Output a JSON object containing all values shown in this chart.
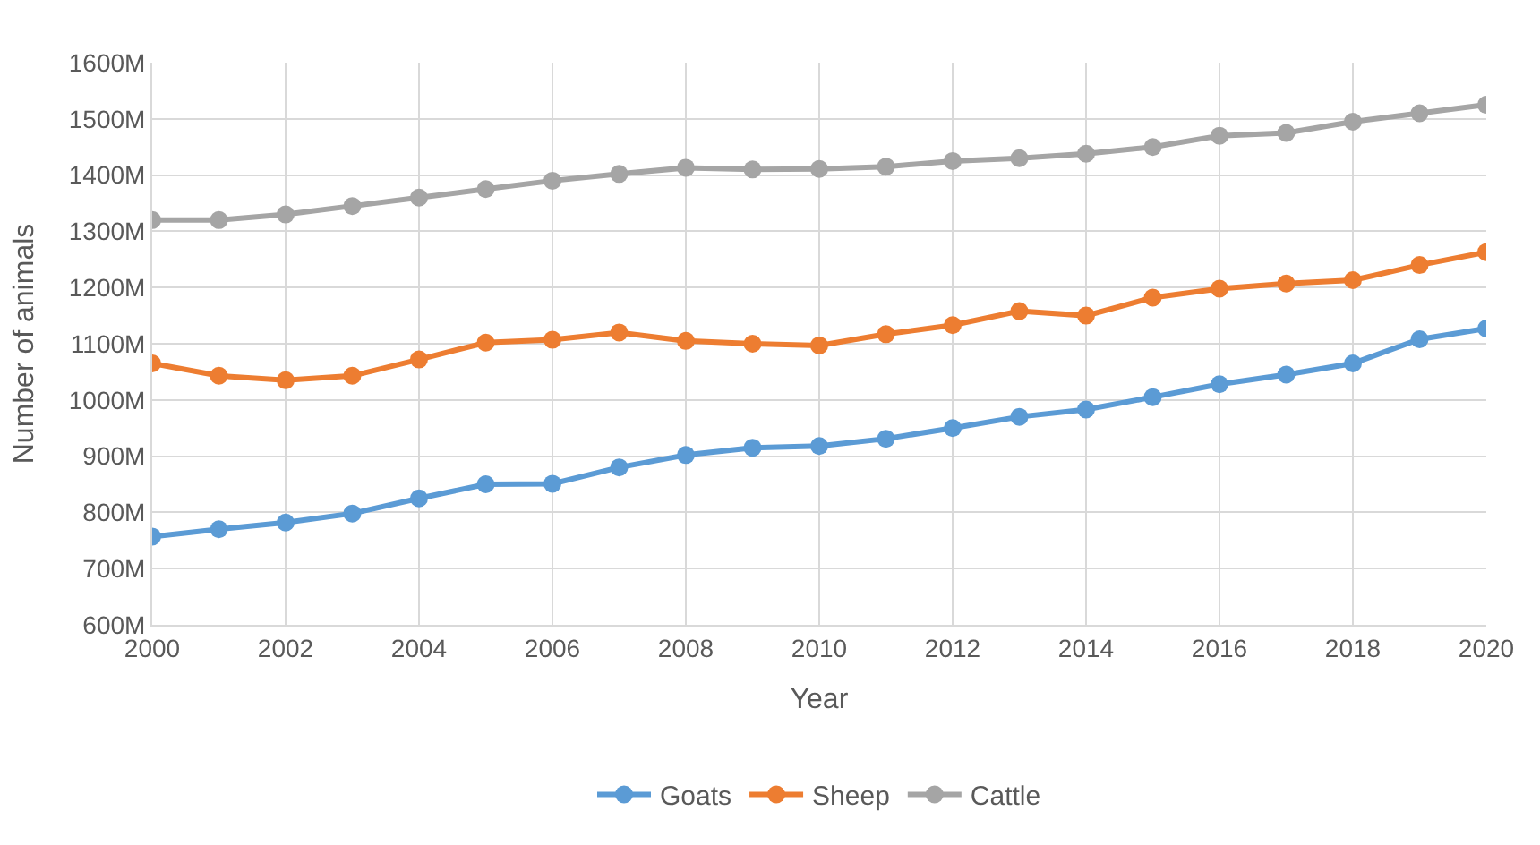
{
  "chart_data": {
    "type": "line",
    "xlabel": "Year",
    "ylabel": "Number of animals",
    "x": [
      2000,
      2001,
      2002,
      2003,
      2004,
      2005,
      2006,
      2007,
      2008,
      2009,
      2010,
      2011,
      2012,
      2013,
      2014,
      2015,
      2016,
      2017,
      2018,
      2019,
      2020
    ],
    "series": [
      {
        "name": "Goats",
        "color": "#5b9bd5",
        "values": [
          757,
          770,
          782,
          798,
          825,
          850,
          851,
          880,
          902,
          915,
          918,
          931,
          950,
          970,
          983,
          1005,
          1028,
          1045,
          1065,
          1108,
          1127
        ]
      },
      {
        "name": "Sheep",
        "color": "#ed7d31",
        "values": [
          1065,
          1043,
          1035,
          1043,
          1072,
          1102,
          1107,
          1120,
          1105,
          1100,
          1097,
          1117,
          1133,
          1158,
          1150,
          1182,
          1198,
          1207,
          1213,
          1240,
          1263
        ]
      },
      {
        "name": "Cattle",
        "color": "#a5a5a5",
        "values": [
          1320,
          1320,
          1330,
          1345,
          1360,
          1375,
          1390,
          1402,
          1413,
          1410,
          1411,
          1415,
          1425,
          1430,
          1438,
          1450,
          1470,
          1475,
          1495,
          1510,
          1525
        ]
      }
    ],
    "xlim": [
      2000,
      2020
    ],
    "xticks": [
      2000,
      2002,
      2004,
      2006,
      2008,
      2010,
      2012,
      2014,
      2016,
      2018,
      2020
    ],
    "ylim": [
      600,
      1600
    ],
    "yticks": [
      {
        "value": 600,
        "label": "600M"
      },
      {
        "value": 700,
        "label": "700M"
      },
      {
        "value": 800,
        "label": "800M"
      },
      {
        "value": 900,
        "label": "900M"
      },
      {
        "value": 1000,
        "label": "1000M"
      },
      {
        "value": 1100,
        "label": "1100M"
      },
      {
        "value": 1200,
        "label": "1200M"
      },
      {
        "value": 1300,
        "label": "1300M"
      },
      {
        "value": 1400,
        "label": "1400M"
      },
      {
        "value": 1500,
        "label": "1500M"
      },
      {
        "value": 1600,
        "label": "1600M"
      }
    ],
    "grid": true,
    "legend": "bottom",
    "marker": "circle",
    "line_style": "solid"
  }
}
